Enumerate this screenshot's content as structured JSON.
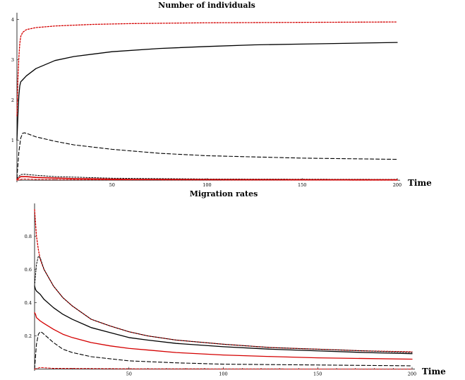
{
  "chart_data": [
    {
      "type": "line",
      "title": "Number of individuals",
      "xlabel": "Time",
      "ylabel": "",
      "xlim": [
        0,
        200
      ],
      "ylim": [
        -0.05,
        4.1
      ],
      "x_ticks": [
        50,
        100,
        150,
        200
      ],
      "y_ticks": [
        1,
        2,
        3,
        4
      ],
      "grid": false,
      "legend": "none",
      "series": [
        {
          "color": "#d40000",
          "dash": "2,2",
          "width": 1.3,
          "points": [
            [
              0,
              1.6
            ],
            [
              0.5,
              2.5
            ],
            [
              1,
              3.05
            ],
            [
              1.5,
              3.4
            ],
            [
              2,
              3.58
            ],
            [
              3,
              3.68
            ],
            [
              5,
              3.75
            ],
            [
              10,
              3.8
            ],
            [
              20,
              3.84
            ],
            [
              40,
              3.88
            ],
            [
              60,
              3.9
            ],
            [
              100,
              3.92
            ],
            [
              150,
              3.93
            ],
            [
              200,
              3.94
            ]
          ]
        },
        {
          "color": "#000000",
          "dash": "",
          "width": 1.3,
          "points": [
            [
              0,
              1.0
            ],
            [
              0.5,
              1.6
            ],
            [
              1,
              2.1
            ],
            [
              1.5,
              2.35
            ],
            [
              2,
              2.45
            ],
            [
              3,
              2.5
            ],
            [
              5,
              2.6
            ],
            [
              10,
              2.78
            ],
            [
              20,
              2.98
            ],
            [
              30,
              3.08
            ],
            [
              50,
              3.2
            ],
            [
              75,
              3.28
            ],
            [
              100,
              3.33
            ],
            [
              125,
              3.37
            ],
            [
              150,
              3.39
            ],
            [
              175,
              3.41
            ],
            [
              200,
              3.43
            ]
          ]
        },
        {
          "color": "#000000",
          "dash": "5,3",
          "width": 1.1,
          "points": [
            [
              0,
              0.05
            ],
            [
              1,
              0.7
            ],
            [
              2,
              1.05
            ],
            [
              3,
              1.17
            ],
            [
              4,
              1.18
            ],
            [
              6,
              1.15
            ],
            [
              10,
              1.08
            ],
            [
              20,
              0.97
            ],
            [
              30,
              0.88
            ],
            [
              50,
              0.77
            ],
            [
              75,
              0.67
            ],
            [
              100,
              0.61
            ],
            [
              150,
              0.55
            ],
            [
              200,
              0.52
            ]
          ]
        },
        {
          "color": "#000000",
          "dash": "2,2",
          "width": 1.0,
          "points": [
            [
              0,
              0.05
            ],
            [
              2,
              0.14
            ],
            [
              4,
              0.15
            ],
            [
              8,
              0.13
            ],
            [
              20,
              0.09
            ],
            [
              50,
              0.05
            ],
            [
              100,
              0.03
            ],
            [
              200,
              0.02
            ]
          ]
        },
        {
          "color": "#d40000",
          "dash": "",
          "width": 1.6,
          "points": [
            [
              0,
              0.02
            ],
            [
              2,
              0.09
            ],
            [
              5,
              0.09
            ],
            [
              10,
              0.07
            ],
            [
              30,
              0.04
            ],
            [
              60,
              0.02
            ],
            [
              100,
              0.015
            ],
            [
              200,
              0.01
            ]
          ]
        },
        {
          "color": "#d40000",
          "dash": "3,2",
          "width": 1.0,
          "points": [
            [
              0,
              0.0
            ],
            [
              3,
              0.03
            ],
            [
              10,
              0.02
            ],
            [
              50,
              0.01
            ],
            [
              200,
              0.0
            ]
          ]
        }
      ]
    },
    {
      "type": "line",
      "title": "Migration rates",
      "xlabel": "Time",
      "ylabel": "",
      "xlim": [
        0,
        200
      ],
      "ylim": [
        -0.01,
        0.98
      ],
      "x_ticks": [
        50,
        100,
        150,
        200
      ],
      "y_ticks": [
        0.2,
        0.4,
        0.6,
        0.8
      ],
      "grid": false,
      "legend": "none",
      "series": [
        {
          "color": "#d40000",
          "dash": "2,2",
          "width": 1.3,
          "points": [
            [
              0,
              0.96
            ],
            [
              0.5,
              0.88
            ],
            [
              1,
              0.8
            ],
            [
              2,
              0.72
            ],
            [
              3,
              0.66
            ],
            [
              5,
              0.6
            ],
            [
              10,
              0.5
            ],
            [
              15,
              0.43
            ],
            [
              20,
              0.38
            ],
            [
              30,
              0.3
            ],
            [
              40,
              0.26
            ],
            [
              50,
              0.225
            ],
            [
              60,
              0.2
            ],
            [
              75,
              0.175
            ],
            [
              100,
              0.15
            ],
            [
              125,
              0.13
            ],
            [
              150,
              0.12
            ],
            [
              175,
              0.11
            ],
            [
              200,
              0.104
            ]
          ]
        },
        {
          "color": "#000000",
          "dash": "2,2",
          "width": 1.0,
          "points": [
            [
              0,
              0.5
            ],
            [
              1,
              0.63
            ],
            [
              2,
              0.68
            ],
            [
              3,
              0.67
            ],
            [
              5,
              0.6
            ],
            [
              10,
              0.5
            ],
            [
              15,
              0.43
            ],
            [
              20,
              0.38
            ],
            [
              30,
              0.3
            ],
            [
              40,
              0.26
            ],
            [
              50,
              0.225
            ],
            [
              60,
              0.2
            ],
            [
              75,
              0.175
            ],
            [
              100,
              0.15
            ],
            [
              125,
              0.13
            ],
            [
              150,
              0.12
            ],
            [
              175,
              0.11
            ],
            [
              200,
              0.1
            ]
          ]
        },
        {
          "color": "#000000",
          "dash": "",
          "width": 1.3,
          "points": [
            [
              0,
              0.5
            ],
            [
              0.5,
              0.48
            ],
            [
              1,
              0.47
            ],
            [
              2,
              0.46
            ],
            [
              3,
              0.45
            ],
            [
              5,
              0.42
            ],
            [
              10,
              0.37
            ],
            [
              15,
              0.33
            ],
            [
              20,
              0.3
            ],
            [
              30,
              0.25
            ],
            [
              40,
              0.22
            ],
            [
              50,
              0.19
            ],
            [
              60,
              0.175
            ],
            [
              75,
              0.155
            ],
            [
              100,
              0.135
            ],
            [
              125,
              0.12
            ],
            [
              150,
              0.11
            ],
            [
              175,
              0.1
            ],
            [
              200,
              0.093
            ]
          ]
        },
        {
          "color": "#d40000",
          "dash": "",
          "width": 1.3,
          "points": [
            [
              0,
              0.34
            ],
            [
              0.5,
              0.33
            ],
            [
              1,
              0.31
            ],
            [
              2,
              0.3
            ],
            [
              3,
              0.29
            ],
            [
              5,
              0.275
            ],
            [
              10,
              0.24
            ],
            [
              15,
              0.21
            ],
            [
              20,
              0.19
            ],
            [
              30,
              0.16
            ],
            [
              40,
              0.14
            ],
            [
              50,
              0.125
            ],
            [
              60,
              0.115
            ],
            [
              75,
              0.1
            ],
            [
              100,
              0.085
            ],
            [
              125,
              0.076
            ],
            [
              150,
              0.068
            ],
            [
              175,
              0.064
            ],
            [
              200,
              0.06
            ]
          ]
        },
        {
          "color": "#000000",
          "dash": "5,3",
          "width": 1.1,
          "points": [
            [
              0,
              0.0
            ],
            [
              1,
              0.15
            ],
            [
              2,
              0.21
            ],
            [
              3,
              0.225
            ],
            [
              4,
              0.22
            ],
            [
              6,
              0.2
            ],
            [
              10,
              0.16
            ],
            [
              15,
              0.12
            ],
            [
              20,
              0.1
            ],
            [
              30,
              0.075
            ],
            [
              50,
              0.05
            ],
            [
              75,
              0.038
            ],
            [
              100,
              0.03
            ],
            [
              150,
              0.025
            ],
            [
              200,
              0.02
            ]
          ]
        },
        {
          "color": "#d40000",
          "dash": "3,2",
          "width": 1.0,
          "points": [
            [
              0,
              0.0
            ],
            [
              3,
              0.01
            ],
            [
              10,
              0.005
            ],
            [
              50,
              0.002
            ],
            [
              200,
              0.0
            ]
          ]
        }
      ]
    }
  ]
}
